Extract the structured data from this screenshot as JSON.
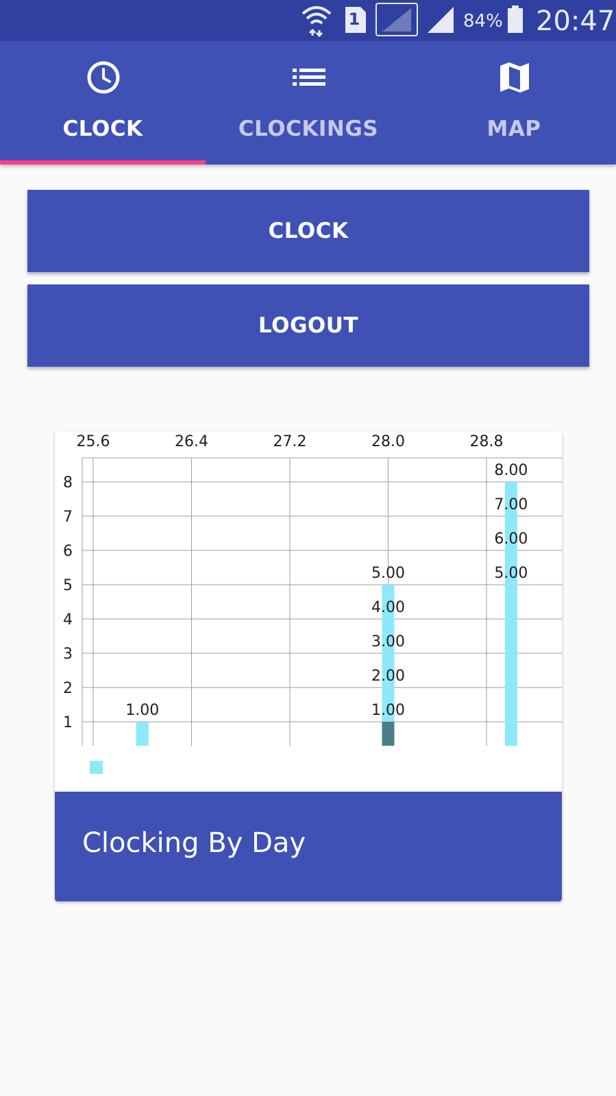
{
  "status_bar": {
    "sim_slot": "1",
    "battery": "84%",
    "time": "20:47",
    "icons": [
      "wifi-icon",
      "sim-card-icon",
      "signal-empty-icon",
      "signal-icon",
      "battery-icon"
    ]
  },
  "tabs": [
    {
      "label": "CLOCK",
      "icon": "clock-icon",
      "active": true
    },
    {
      "label": "CLOCKINGS",
      "icon": "list-icon",
      "active": false
    },
    {
      "label": "MAP",
      "icon": "map-icon",
      "active": false
    }
  ],
  "buttons": {
    "clock_label": "CLOCK",
    "logout_label": "LOGOUT"
  },
  "card": {
    "title": "Clocking By Day"
  },
  "colors": {
    "primary": "#3f51b5",
    "primary_dark": "#3040a0",
    "accent": "#ff4081",
    "bar": "#8ee8fc",
    "bar_dark": "#4a7f85"
  },
  "chart_data": {
    "type": "bar",
    "title": "",
    "xlabel": "",
    "ylabel": "",
    "x_ticks": [
      "25.6",
      "26.4",
      "27.2",
      "28.0",
      "28.8"
    ],
    "x_tick_values": [
      25.6,
      26.4,
      27.2,
      28.0,
      28.8
    ],
    "y_ticks": [
      "1",
      "2",
      "3",
      "4",
      "5",
      "6",
      "7",
      "8"
    ],
    "xlim": [
      25.5,
      29.4
    ],
    "ylim": [
      0.3,
      8.7
    ],
    "grid": true,
    "x_axis_position": "top",
    "legend": "bottom-left",
    "series": [
      {
        "color": "#8ee8fc",
        "points": [
          {
            "x": 26.0,
            "y": 1,
            "label": "1.00"
          },
          {
            "x": 28.0,
            "y": 1,
            "label": "1.00"
          },
          {
            "x": 28.0,
            "y": 2,
            "label": "2.00"
          },
          {
            "x": 28.0,
            "y": 3,
            "label": "3.00"
          },
          {
            "x": 28.0,
            "y": 4,
            "label": "4.00"
          },
          {
            "x": 28.0,
            "y": 5,
            "label": "5.00"
          },
          {
            "x": 29.0,
            "y": 5,
            "label": "5.00"
          },
          {
            "x": 29.0,
            "y": 6,
            "label": "6.00"
          },
          {
            "x": 29.0,
            "y": 7,
            "label": "7.00"
          },
          {
            "x": 29.0,
            "y": 8,
            "label": "8.00"
          }
        ]
      }
    ],
    "bar_bottom_value": 0.3,
    "overlap_color": "#4a7f85"
  }
}
